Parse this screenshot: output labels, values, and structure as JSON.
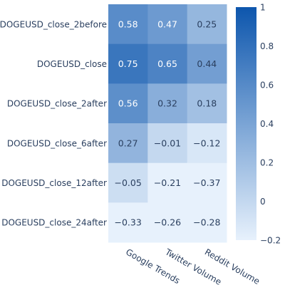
{
  "chart_data": {
    "type": "heatmap",
    "title": "",
    "xlabel": "",
    "ylabel": "",
    "rows": [
      "DOGEUSD_close_2before",
      "DOGEUSD_close",
      "DOGEUSD_close_2after",
      "DOGEUSD_close_6after",
      "DOGEUSD_close_12after",
      "DOGEUSD_close_24after"
    ],
    "columns": [
      "Google Trends",
      "Twitter Volume",
      "Reddit Volume"
    ],
    "values": [
      [
        0.58,
        0.47,
        0.25
      ],
      [
        0.75,
        0.65,
        0.44
      ],
      [
        0.56,
        0.32,
        0.18
      ],
      [
        0.27,
        -0.01,
        -0.12
      ],
      [
        -0.05,
        -0.21,
        -0.37
      ],
      [
        -0.33,
        -0.26,
        -0.28
      ]
    ],
    "value_labels": [
      [
        "0.58",
        "0.47",
        "0.25"
      ],
      [
        "0.75",
        "0.65",
        "0.44"
      ],
      [
        "0.56",
        "0.32",
        "0.18"
      ],
      [
        "0.27",
        "−0.01",
        "−0.12"
      ],
      [
        "−0.05",
        "−0.21",
        "−0.37"
      ],
      [
        "−0.33",
        "−0.26",
        "−0.28"
      ]
    ],
    "colorscale": {
      "range": [
        -0.2,
        1
      ],
      "low_color": "#e7f1fc",
      "high_color": "#0d56ad"
    },
    "colorbar": {
      "ticks": [
        1,
        0.8,
        0.6,
        0.4,
        0.2,
        0,
        -0.2
      ],
      "tick_labels": [
        "1",
        "0.8",
        "0.6",
        "0.4",
        "0.2",
        "0",
        "−0.2"
      ]
    }
  }
}
